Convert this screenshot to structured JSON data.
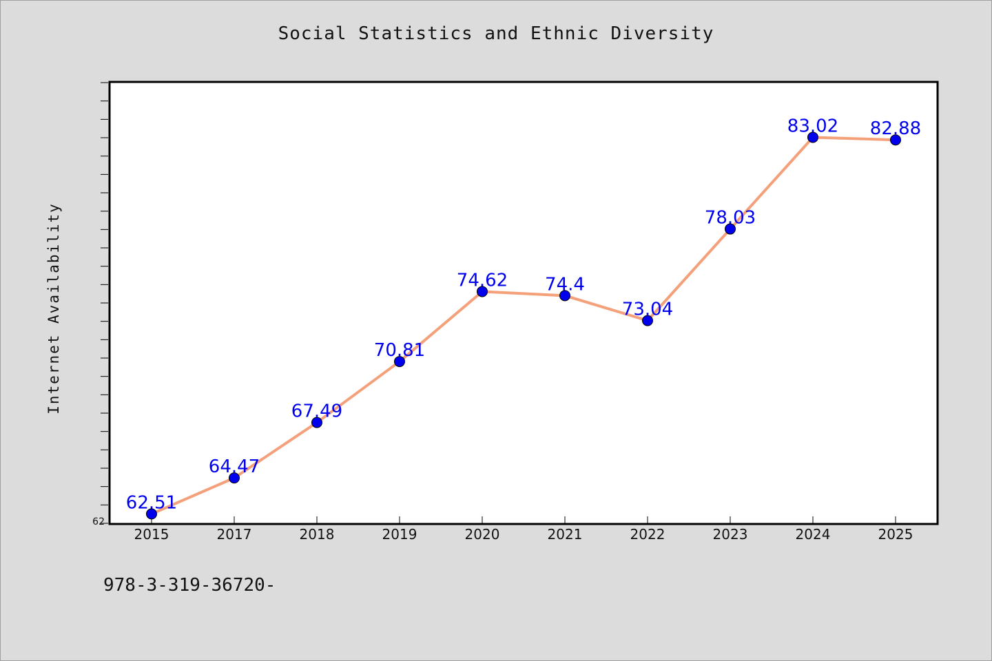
{
  "chart_data": {
    "type": "line",
    "title": "Social Statistics and Ethnic Diversity",
    "xlabel": "",
    "ylabel": "Internet Availability",
    "categories": [
      "2015",
      "2017",
      "2018",
      "2019",
      "2020",
      "2021",
      "2022",
      "2023",
      "2024",
      "2025"
    ],
    "series": [
      {
        "values": [
          62.51,
          64.47,
          67.49,
          70.81,
          74.62,
          74.4,
          73.04,
          78.03,
          83.02,
          82.88
        ],
        "data_labels": [
          "62.51",
          "64.47",
          "67.49",
          "70.81",
          "74.62",
          "74.4",
          "73.04",
          "78.03",
          "83.02",
          "82.88"
        ],
        "line_color": "#f4a07a",
        "marker_color": "#0000ee"
      }
    ],
    "ylim": [
      62,
      86
    ],
    "y_tick_labels": [
      "62"
    ],
    "grid": false,
    "legend": "none",
    "label_color": "#0000ee"
  },
  "footnote": "978-3-319-36720-"
}
